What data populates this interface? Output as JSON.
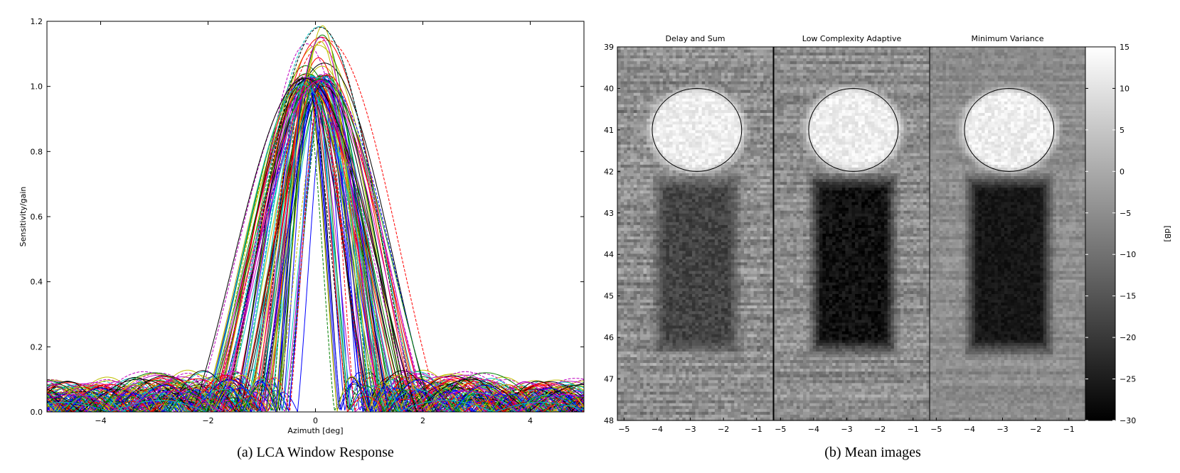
{
  "captions": {
    "a": "(a) LCA Window Response",
    "b": "(b) Mean images"
  },
  "chart_data": [
    {
      "type": "line",
      "xlabel": "Azimuth [deg]",
      "ylabel": "Sensitivity/gain",
      "xlim": [
        -5,
        5
      ],
      "ylim": [
        0,
        1.2
      ],
      "xticks": [
        -4,
        -2,
        0,
        2,
        4
      ],
      "yticks": [
        0.0,
        0.2,
        0.4,
        0.6,
        0.8,
        1.0,
        1.2
      ],
      "yticklabels": [
        "0.0",
        "0.2",
        "0.4",
        "0.6",
        "0.8",
        "1.0",
        "1.2"
      ],
      "grid": false,
      "legend": "none",
      "series_family": {
        "count": 96,
        "description_shape": "steered sinc-like window responses",
        "peak_range": [
          1.0,
          1.19
        ],
        "steer_range_deg": [
          -0.25,
          0.25
        ],
        "mainlobe_null_halfwidth_range_deg": [
          0.55,
          2.1
        ],
        "sidelobe_level_range": [
          0.03,
          0.15
        ],
        "colors": [
          "#0000ff",
          "#008000",
          "#ff0000",
          "#00bfbf",
          "#bf00bf",
          "#bfbf00",
          "#000000"
        ]
      }
    },
    {
      "type": "heatmap",
      "panels": [
        {
          "title": "Delay and Sum",
          "style": "das"
        },
        {
          "title": "Low Complexity Adaptive",
          "style": "lca"
        },
        {
          "title": "Minimum Variance",
          "style": "mv"
        }
      ],
      "xlim": [
        -5.2,
        -0.5
      ],
      "ylim": [
        48,
        39
      ],
      "xticks": [
        -5,
        -4,
        -3,
        -2,
        -1
      ],
      "yticks": [
        39,
        40,
        41,
        42,
        43,
        44,
        45,
        46,
        47,
        48
      ],
      "colorbar": {
        "label": "[dB]",
        "range": [
          -30,
          15
        ],
        "ticks": [
          15,
          10,
          5,
          0,
          -5,
          -10,
          -15,
          -20,
          -25,
          -30
        ],
        "ticklabels": [
          "15",
          "10",
          "5",
          "0",
          "−5",
          "−10",
          "−15",
          "−20",
          "−25",
          "−30"
        ],
        "colormap": "gray"
      },
      "features": {
        "bright_cyst": {
          "center_x": -2.8,
          "center_y": 41.0,
          "radius_x": 1.35,
          "radius_y": 1.0,
          "level_db": 12
        },
        "dark_region": {
          "x_range": [
            -4.2,
            -1.4
          ],
          "y_range": [
            42.0,
            46.5
          ],
          "level_db": {
            "das": -18,
            "lca": -27,
            "mv": -26
          }
        },
        "background_db": -5
      }
    }
  ]
}
